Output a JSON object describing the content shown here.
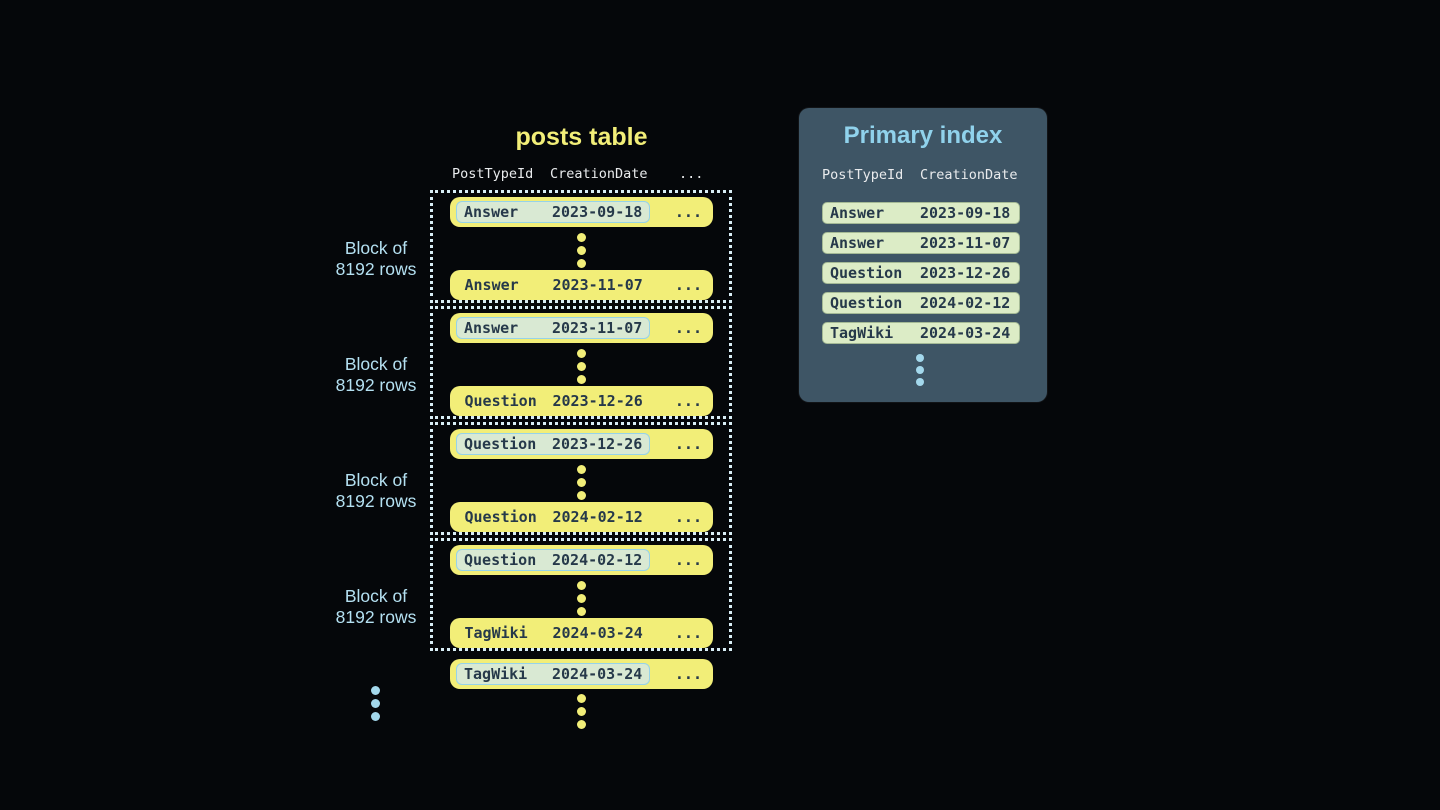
{
  "colors": {
    "bg": "#05070a",
    "yellow": "#f2ee78",
    "navy": "#26394a",
    "block-border": "#d9eef6",
    "ltblue": "#b4e0f1",
    "ixtitle": "#90d2ec",
    "panel": "#3e5565",
    "pill": "#dcecc6",
    "pill-border": "#a4b995",
    "hl-pill": "#d9e9d3",
    "hl-border": "#96d3e9",
    "header-text": "#e9ebed",
    "dot-blue": "#a3d8ec"
  },
  "posts_table": {
    "title": "posts table",
    "header": {
      "col1": "PostTypeId",
      "col2": "CreationDate",
      "ellipsis": "..."
    },
    "row_ellipsis": "...",
    "block_label": {
      "line1": "Block of",
      "line2": "8192 rows"
    },
    "blocks": [
      {
        "first_row": {
          "type": "Answer",
          "date": "2023-09-18"
        },
        "last_row": {
          "type": "Answer",
          "date": "2023-11-07"
        }
      },
      {
        "first_row": {
          "type": "Answer",
          "date": "2023-11-07"
        },
        "last_row": {
          "type": "Question",
          "date": "2023-12-26"
        }
      },
      {
        "first_row": {
          "type": "Question",
          "date": "2023-12-26"
        },
        "last_row": {
          "type": "Question",
          "date": "2024-02-12"
        }
      },
      {
        "first_row": {
          "type": "Question",
          "date": "2024-02-12"
        },
        "last_row": {
          "type": "TagWiki",
          "date": "2024-03-24"
        }
      }
    ],
    "overflow_row": {
      "type": "TagWiki",
      "date": "2024-03-24"
    }
  },
  "primary_index": {
    "title": "Primary index",
    "header": {
      "col1": "PostTypeId",
      "col2": "CreationDate"
    },
    "entries": [
      {
        "type": "Answer",
        "date": "2023-09-18"
      },
      {
        "type": "Answer",
        "date": "2023-11-07"
      },
      {
        "type": "Question",
        "date": "2023-12-26"
      },
      {
        "type": "Question",
        "date": "2024-02-12"
      },
      {
        "type": "TagWiki",
        "date": "2024-03-24"
      }
    ]
  }
}
